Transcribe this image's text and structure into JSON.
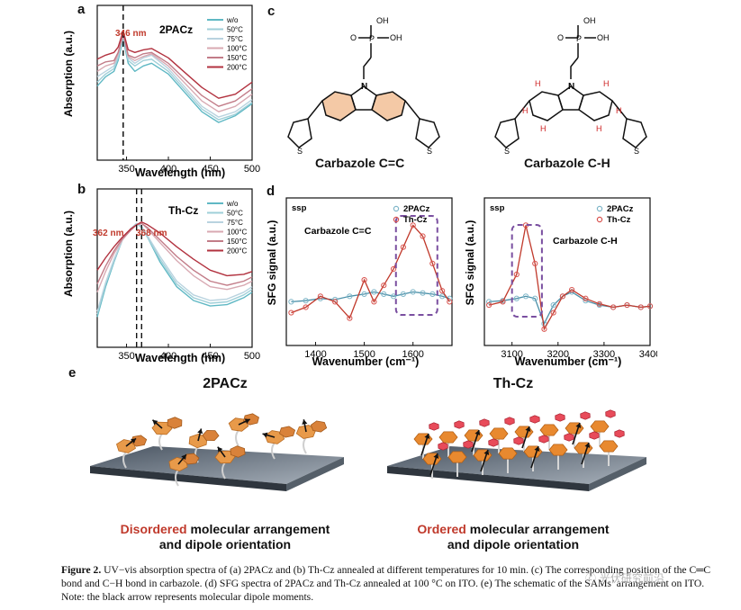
{
  "panel_labels": {
    "a": "a",
    "b": "b",
    "c": "c",
    "d": "d",
    "e": "e"
  },
  "panel_a": {
    "sample": "2PACz",
    "peak_annotation": "346 nm",
    "ylabel": "Absorption (a.u.)",
    "xlabel": "Wavelength (nm)",
    "xticks": [
      "350",
      "400",
      "450",
      "500"
    ],
    "legend": [
      "w/o",
      "50°C",
      "75°C",
      "100°C",
      "150°C",
      "200°C"
    ]
  },
  "panel_b": {
    "sample": "Th-Cz",
    "peak_annotation_1": "362 nm",
    "peak_annotation_2": "368 nm",
    "ylabel": "Absorption (a.u.)",
    "xlabel": "Wavelength (nm)",
    "xticks": [
      "350",
      "400",
      "450",
      "500"
    ],
    "legend": [
      "w/o",
      "50°C",
      "75°C",
      "100°C",
      "150°C",
      "200°C"
    ]
  },
  "panel_c": {
    "left_label": "Carbazole C=C",
    "right_label": "Carbazole C-H",
    "phosphonic_oh": "OH",
    "phosphonic_o": "O",
    "phosphonic_p": "P",
    "nitrogen": "N",
    "sulfur": "S",
    "hydrogen": "H"
  },
  "panel_d_left": {
    "polarization": "ssp",
    "annotation": "Carbazole C=C",
    "ylabel": "SFG signal (a.u.)",
    "xlabel": "Wavenumber (cm⁻¹)",
    "xticks": [
      "1400",
      "1500",
      "1600"
    ],
    "legend": [
      "2PACz",
      "Th-Cz"
    ]
  },
  "panel_d_right": {
    "polarization": "ssp",
    "annotation": "Carbazole C-H",
    "ylabel": "SFG signal (a.u.)",
    "xlabel": "Wavenumber (cm⁻¹)",
    "xticks": [
      "3100",
      "3200",
      "3300",
      "3400"
    ],
    "legend": [
      "2PACz",
      "Th-Cz"
    ]
  },
  "panel_e": {
    "left_title": "2PACz",
    "right_title": "Th-Cz",
    "left_caption_highlight": "Disordered",
    "left_caption_rest": " molecular arrangement",
    "left_caption_line2": "and dipole orientation",
    "right_caption_highlight": "Ordered",
    "right_caption_rest": " molecular arrangement",
    "right_caption_line2": "and dipole orientation"
  },
  "caption": {
    "label": "Figure 2.",
    "text": " UV−vis absorption spectra of (a) 2PACz and (b) Th-Cz annealed at different temperatures for 10 min. (c) The corresponding position of the C═C bond and C−H bond in carbazole. (d) SFG spectra of 2PACz and Th-Cz annealed at 100 °C on ITO. (e) The schematic of the SAMs’ arrangement on ITO. Note: the black arrow represents molecular dipole moments."
  },
  "watermark": "ⓒ 光伏研究前沿",
  "colors": {
    "wo": "#5fb8c4",
    "c50": "#9fcfd8",
    "c75": "#b9d3df",
    "c100": "#d8a9b2",
    "c150": "#c27c88",
    "c200": "#b2323f",
    "th_highlight": "#f2c19f",
    "h_color": "#cc2222",
    "sfg_blue": "#7fb6c8",
    "sfg_red": "#d9534f",
    "dashed_box": "#7a4fa0"
  },
  "chart_data": [
    {
      "type": "line",
      "panel": "a",
      "title": "2PACz",
      "xlabel": "Wavelength (nm)",
      "ylabel": "Absorption (a.u.)",
      "xlim": [
        315,
        500
      ],
      "ylim": [
        0,
        1.15
      ],
      "x": [
        315,
        325,
        335,
        340,
        346,
        352,
        360,
        370,
        380,
        400,
        420,
        440,
        460,
        480,
        500
      ],
      "series": [
        {
          "name": "w/o",
          "values": [
            0.55,
            0.62,
            0.66,
            0.74,
            0.9,
            0.72,
            0.66,
            0.7,
            0.72,
            0.64,
            0.5,
            0.36,
            0.28,
            0.33,
            0.42
          ]
        },
        {
          "name": "50°C",
          "values": [
            0.58,
            0.64,
            0.68,
            0.76,
            0.92,
            0.74,
            0.7,
            0.74,
            0.75,
            0.66,
            0.52,
            0.38,
            0.3,
            0.34,
            0.43
          ]
        },
        {
          "name": "75°C",
          "values": [
            0.62,
            0.66,
            0.7,
            0.78,
            0.93,
            0.76,
            0.72,
            0.76,
            0.78,
            0.68,
            0.54,
            0.4,
            0.32,
            0.36,
            0.45
          ]
        },
        {
          "name": "100°C",
          "values": [
            0.66,
            0.7,
            0.72,
            0.79,
            0.93,
            0.77,
            0.74,
            0.77,
            0.79,
            0.7,
            0.57,
            0.44,
            0.36,
            0.4,
            0.49
          ]
        },
        {
          "name": "150°C",
          "values": [
            0.7,
            0.73,
            0.74,
            0.8,
            0.94,
            0.78,
            0.76,
            0.79,
            0.8,
            0.72,
            0.6,
            0.48,
            0.4,
            0.44,
            0.53
          ]
        },
        {
          "name": "200°C",
          "values": [
            0.75,
            0.78,
            0.8,
            0.84,
            0.96,
            0.82,
            0.8,
            0.82,
            0.83,
            0.76,
            0.65,
            0.54,
            0.46,
            0.49,
            0.58
          ]
        }
      ]
    },
    {
      "type": "line",
      "panel": "b",
      "title": "Th-Cz",
      "xlabel": "Wavelength (nm)",
      "ylabel": "Absorption (a.u.)",
      "xlim": [
        315,
        500
      ],
      "ylim": [
        0,
        1.15
      ],
      "x": [
        315,
        325,
        335,
        345,
        355,
        362,
        368,
        375,
        390,
        410,
        430,
        450,
        470,
        490,
        500
      ],
      "series": [
        {
          "name": "w/o",
          "values": [
            0.22,
            0.44,
            0.62,
            0.78,
            0.86,
            0.9,
            0.87,
            0.8,
            0.62,
            0.44,
            0.34,
            0.3,
            0.31,
            0.36,
            0.4
          ]
        },
        {
          "name": "50°C",
          "values": [
            0.24,
            0.46,
            0.63,
            0.78,
            0.86,
            0.9,
            0.87,
            0.8,
            0.64,
            0.46,
            0.36,
            0.32,
            0.33,
            0.38,
            0.42
          ]
        },
        {
          "name": "75°C",
          "values": [
            0.26,
            0.47,
            0.64,
            0.78,
            0.86,
            0.9,
            0.88,
            0.81,
            0.66,
            0.48,
            0.38,
            0.34,
            0.35,
            0.4,
            0.44
          ]
        },
        {
          "name": "100°C",
          "values": [
            0.4,
            0.55,
            0.68,
            0.78,
            0.85,
            0.89,
            0.9,
            0.86,
            0.76,
            0.63,
            0.52,
            0.44,
            0.42,
            0.45,
            0.48
          ]
        },
        {
          "name": "150°C",
          "values": [
            0.46,
            0.59,
            0.7,
            0.79,
            0.85,
            0.89,
            0.9,
            0.87,
            0.78,
            0.66,
            0.56,
            0.48,
            0.45,
            0.48,
            0.51
          ]
        },
        {
          "name": "200°C",
          "values": [
            0.56,
            0.65,
            0.73,
            0.8,
            0.86,
            0.89,
            0.91,
            0.89,
            0.83,
            0.73,
            0.64,
            0.56,
            0.52,
            0.53,
            0.55
          ]
        }
      ]
    },
    {
      "type": "scatter",
      "panel": "d-left",
      "xlabel": "Wavenumber (cm⁻¹)",
      "ylabel": "SFG signal (a.u.)",
      "xlim": [
        1340,
        1680
      ],
      "ylim": [
        -0.35,
        1.0
      ],
      "series": [
        {
          "name": "2PACz",
          "x": [
            1350,
            1380,
            1410,
            1440,
            1470,
            1500,
            1520,
            1540,
            1560,
            1580,
            1600,
            1620,
            1640,
            1660,
            1675
          ],
          "values": [
            0.05,
            0.06,
            0.08,
            0.07,
            0.1,
            0.12,
            0.14,
            0.12,
            0.1,
            0.12,
            0.14,
            0.13,
            0.12,
            0.1,
            0.08
          ]
        },
        {
          "name": "Th-Cz",
          "x": [
            1350,
            1380,
            1410,
            1440,
            1470,
            1500,
            1520,
            1540,
            1560,
            1580,
            1600,
            1620,
            1640,
            1660,
            1675
          ],
          "values": [
            -0.05,
            0.0,
            0.1,
            0.05,
            -0.1,
            0.25,
            0.05,
            0.2,
            0.35,
            0.55,
            0.75,
            0.65,
            0.4,
            0.15,
            0.05
          ]
        }
      ]
    },
    {
      "type": "scatter",
      "panel": "d-right",
      "xlabel": "Wavenumber (cm⁻¹)",
      "ylabel": "SFG signal (a.u.)",
      "xlim": [
        3040,
        3400
      ],
      "ylim": [
        -0.35,
        1.0
      ],
      "series": [
        {
          "name": "2PACz",
          "x": [
            3050,
            3080,
            3110,
            3130,
            3150,
            3170,
            3190,
            3210,
            3230,
            3260,
            3290,
            3320,
            3350,
            3380,
            3400
          ],
          "values": [
            0.05,
            0.06,
            0.08,
            0.1,
            0.08,
            -0.15,
            0.02,
            0.1,
            0.14,
            0.06,
            0.02,
            0.0,
            0.02,
            0.0,
            0.01
          ]
        },
        {
          "name": "Th-Cz",
          "x": [
            3050,
            3080,
            3110,
            3130,
            3150,
            3170,
            3190,
            3210,
            3230,
            3260,
            3290,
            3320,
            3350,
            3380,
            3400
          ],
          "values": [
            0.02,
            0.05,
            0.3,
            0.75,
            0.4,
            -0.2,
            -0.05,
            0.1,
            0.16,
            0.08,
            0.03,
            0.0,
            0.02,
            0.0,
            0.01
          ]
        }
      ]
    }
  ]
}
